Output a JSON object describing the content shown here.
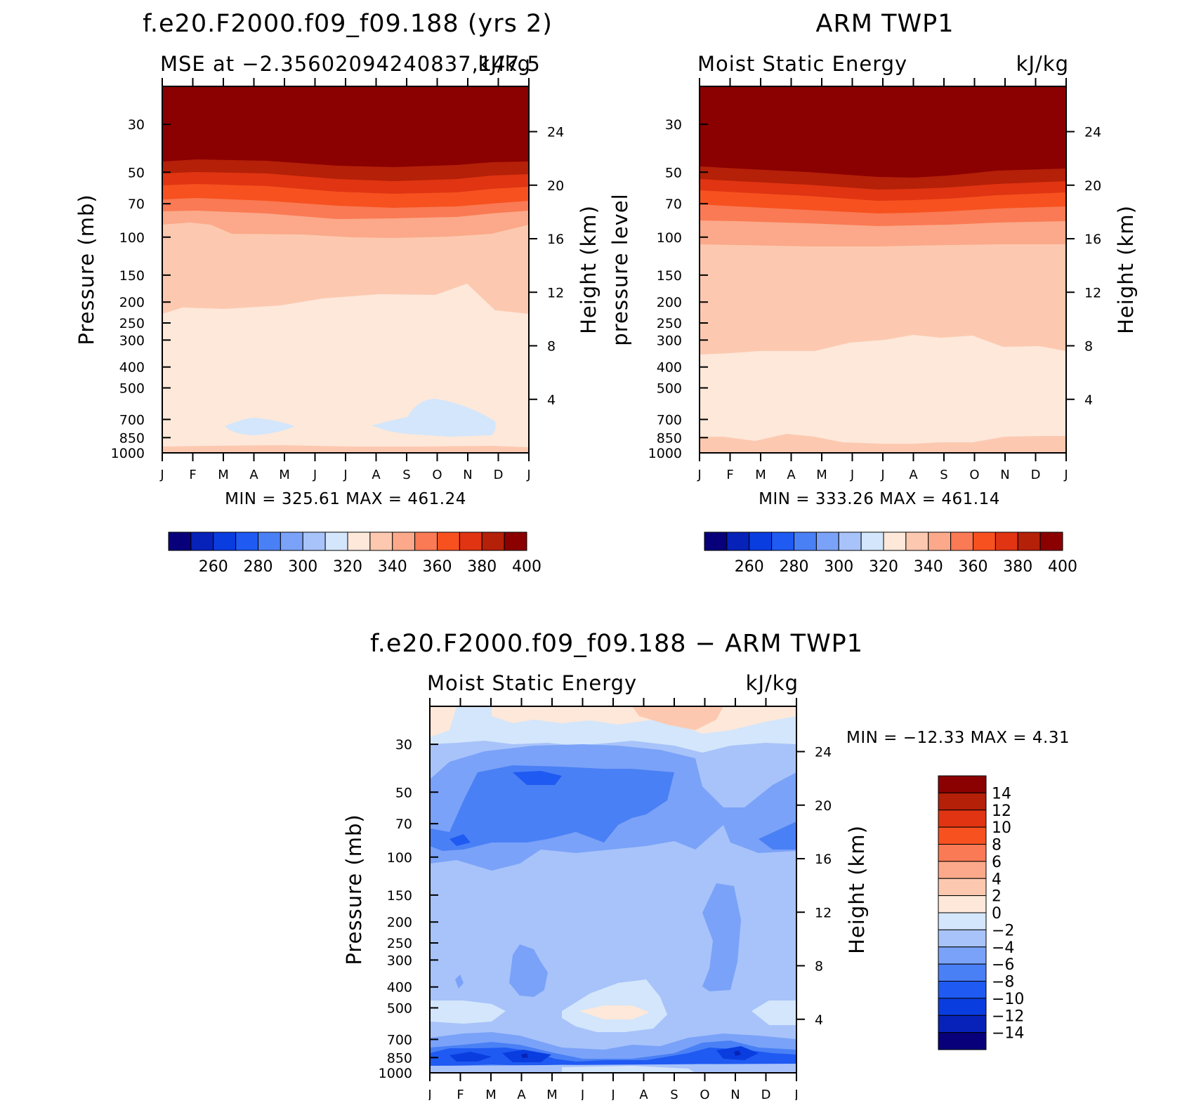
{
  "panels": [
    {
      "id": "model",
      "title": "f.e20.F2000.f09_f09.188 (yrs 2)",
      "subtitle_left": "MSE at −2.35602094240837,147.5",
      "subtitle_right": "kJ/kg",
      "ylabel_left": "Pressure (mb)",
      "ylabel_right": "Height (km)",
      "min_label": "MIN",
      "max_label": "MAX",
      "min_value": "325.61",
      "max_value": "461.24",
      "stats_text": "MIN = 325.61 MAX = 461.24"
    },
    {
      "id": "obs",
      "title": "ARM TWP1",
      "subtitle_left": "Moist Static Energy",
      "subtitle_right": "kJ/kg",
      "ylabel_left": "pressure level",
      "ylabel_right": "Height (km)",
      "min_value": "333.26",
      "max_value": "461.14",
      "stats_text": "MIN = 333.26 MAX = 461.14"
    },
    {
      "id": "diff",
      "title": "f.e20.F2000.f09_f09.188 − ARM TWP1",
      "subtitle_left": "Moist Static Energy",
      "subtitle_right": "kJ/kg",
      "ylabel_left": "Pressure (mb)",
      "ylabel_right": "Height (km)",
      "min_value": "−12.33",
      "max_value": "4.31",
      "stats_text": "MIN = −12.33 MAX =    4.31"
    }
  ],
  "chart_data": [
    {
      "type": "heatmap",
      "title": "f.e20.F2000.f09_f09.188 (yrs 2)",
      "subtitle": "MSE at −2.35602094240837,147.5 kJ/kg",
      "xlabel": "",
      "ylabel": "Pressure (mb)",
      "y2label": "Height (km)",
      "x_ticks": [
        "J",
        "F",
        "M",
        "A",
        "M",
        "J",
        "J",
        "A",
        "S",
        "O",
        "N",
        "D",
        "J"
      ],
      "pressure_ticks": [
        30,
        50,
        70,
        100,
        150,
        200,
        250,
        300,
        400,
        500,
        700,
        850,
        1000
      ],
      "height_ticks_km": [
        4,
        8,
        12,
        16,
        20,
        24
      ],
      "colorbar_ticks": [
        260,
        280,
        300,
        320,
        340,
        360,
        380,
        400
      ],
      "colorbar_levels": [
        250,
        260,
        270,
        280,
        290,
        300,
        310,
        320,
        330,
        340,
        350,
        360,
        370,
        380,
        390,
        400
      ],
      "contour_boundaries_mb": {
        "level_390_top": 52,
        "level_380": 58,
        "level_370": 68,
        "level_360": 80,
        "level_350": 92,
        "level_340": 105,
        "level_330": 245,
        "level_330_low": 960
      },
      "min": 325.61,
      "max": 461.24
    },
    {
      "type": "heatmap",
      "title": "ARM TWP1",
      "subtitle": "Moist Static Energy kJ/kg",
      "ylabel": "pressure level",
      "y2label": "Height (km)",
      "x_ticks": [
        "J",
        "F",
        "M",
        "A",
        "M",
        "J",
        "J",
        "A",
        "S",
        "O",
        "N",
        "D",
        "J"
      ],
      "pressure_ticks": [
        30,
        50,
        70,
        100,
        150,
        200,
        250,
        300,
        400,
        500,
        700,
        850,
        1000
      ],
      "height_ticks_km": [
        4,
        8,
        12,
        16,
        20,
        24
      ],
      "colorbar_ticks": [
        260,
        280,
        300,
        320,
        340,
        360,
        380,
        400
      ],
      "colorbar_levels": [
        250,
        260,
        270,
        280,
        290,
        300,
        310,
        320,
        330,
        340,
        350,
        360,
        370,
        380,
        390,
        400
      ],
      "min": 333.26,
      "max": 461.14
    },
    {
      "type": "heatmap",
      "title": "f.e20.F2000.f09_f09.188 − ARM TWP1",
      "subtitle": "Moist Static Energy kJ/kg",
      "ylabel": "Pressure (mb)",
      "y2label": "Height (km)",
      "x_ticks": [
        "J",
        "F",
        "M",
        "A",
        "M",
        "J",
        "J",
        "A",
        "S",
        "O",
        "N",
        "D",
        "J"
      ],
      "pressure_ticks": [
        30,
        50,
        70,
        100,
        150,
        200,
        250,
        300,
        400,
        500,
        700,
        850,
        1000
      ],
      "height_ticks_km": [
        4,
        8,
        12,
        16,
        20,
        24
      ],
      "colorbar_ticks": [
        14,
        12,
        10,
        8,
        6,
        4,
        2,
        0,
        -2,
        -4,
        -6,
        -8,
        -10,
        -12,
        -14
      ],
      "min": -12.33,
      "max": 4.31
    }
  ],
  "colors": {
    "scale": [
      "#08007a",
      "#0722b8",
      "#0a3de0",
      "#1f5af2",
      "#4a80f5",
      "#7aa2f8",
      "#a8c3fa",
      "#d3e6fb",
      "#fde8da",
      "#fcc9b0",
      "#fba98a",
      "#f97a54",
      "#f7511f",
      "#e03412",
      "#b42008",
      "#8b0000"
    ]
  }
}
